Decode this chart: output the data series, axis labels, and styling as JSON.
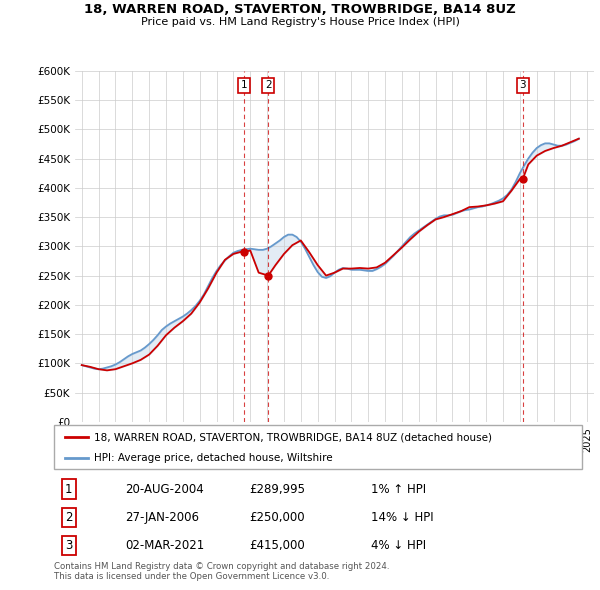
{
  "title": "18, WARREN ROAD, STAVERTON, TROWBRIDGE, BA14 8UZ",
  "subtitle": "Price paid vs. HM Land Registry's House Price Index (HPI)",
  "ylim": [
    0,
    600000
  ],
  "yticks": [
    0,
    50000,
    100000,
    150000,
    200000,
    250000,
    300000,
    350000,
    400000,
    450000,
    500000,
    550000,
    600000
  ],
  "ytick_labels": [
    "£0",
    "£50K",
    "£100K",
    "£150K",
    "£200K",
    "£250K",
    "£300K",
    "£350K",
    "£400K",
    "£450K",
    "£500K",
    "£550K",
    "£600K"
  ],
  "transactions": [
    {
      "label": "1",
      "date": "20-AUG-2004",
      "price": 289995,
      "x": 2004.63,
      "hpi_pct": "1%",
      "hpi_dir": "↑"
    },
    {
      "label": "2",
      "date": "27-JAN-2006",
      "price": 250000,
      "x": 2006.07,
      "hpi_pct": "14%",
      "hpi_dir": "↓"
    },
    {
      "label": "3",
      "date": "02-MAR-2021",
      "price": 415000,
      "x": 2021.17,
      "hpi_pct": "4%",
      "hpi_dir": "↓"
    }
  ],
  "legend_line1": "18, WARREN ROAD, STAVERTON, TROWBRIDGE, BA14 8UZ (detached house)",
  "legend_line2": "HPI: Average price, detached house, Wiltshire",
  "footer1": "Contains HM Land Registry data © Crown copyright and database right 2024.",
  "footer2": "This data is licensed under the Open Government Licence v3.0.",
  "line_color_red": "#cc0000",
  "line_color_blue": "#6699cc",
  "background_color": "#ffffff",
  "plot_bg_color": "#ffffff",
  "hpi_x": [
    1995.0,
    1995.25,
    1995.5,
    1995.75,
    1996.0,
    1996.25,
    1996.5,
    1996.75,
    1997.0,
    1997.25,
    1997.5,
    1997.75,
    1998.0,
    1998.25,
    1998.5,
    1998.75,
    1999.0,
    1999.25,
    1999.5,
    1999.75,
    2000.0,
    2000.25,
    2000.5,
    2000.75,
    2001.0,
    2001.25,
    2001.5,
    2001.75,
    2002.0,
    2002.25,
    2002.5,
    2002.75,
    2003.0,
    2003.25,
    2003.5,
    2003.75,
    2004.0,
    2004.25,
    2004.5,
    2004.75,
    2005.0,
    2005.25,
    2005.5,
    2005.75,
    2006.0,
    2006.25,
    2006.5,
    2006.75,
    2007.0,
    2007.25,
    2007.5,
    2007.75,
    2008.0,
    2008.25,
    2008.5,
    2008.75,
    2009.0,
    2009.25,
    2009.5,
    2009.75,
    2010.0,
    2010.25,
    2010.5,
    2010.75,
    2011.0,
    2011.25,
    2011.5,
    2011.75,
    2012.0,
    2012.25,
    2012.5,
    2012.75,
    2013.0,
    2013.25,
    2013.5,
    2013.75,
    2014.0,
    2014.25,
    2014.5,
    2014.75,
    2015.0,
    2015.25,
    2015.5,
    2015.75,
    2016.0,
    2016.25,
    2016.5,
    2016.75,
    2017.0,
    2017.25,
    2017.5,
    2017.75,
    2018.0,
    2018.25,
    2018.5,
    2018.75,
    2019.0,
    2019.25,
    2019.5,
    2019.75,
    2020.0,
    2020.25,
    2020.5,
    2020.75,
    2021.0,
    2021.25,
    2021.5,
    2021.75,
    2022.0,
    2022.25,
    2022.5,
    2022.75,
    2023.0,
    2023.25,
    2023.5,
    2023.75,
    2024.0,
    2024.25,
    2024.5
  ],
  "hpi_y": [
    97000,
    95000,
    93000,
    91000,
    90000,
    91000,
    93000,
    95000,
    98000,
    102000,
    107000,
    112000,
    116000,
    119000,
    122000,
    127000,
    133000,
    140000,
    148000,
    157000,
    163000,
    168000,
    172000,
    176000,
    180000,
    185000,
    191000,
    198000,
    207000,
    218000,
    232000,
    246000,
    258000,
    268000,
    276000,
    283000,
    289000,
    292000,
    294000,
    295000,
    296000,
    295000,
    294000,
    294000,
    296000,
    300000,
    305000,
    310000,
    316000,
    320000,
    320000,
    316000,
    308000,
    296000,
    282000,
    268000,
    256000,
    248000,
    246000,
    249000,
    255000,
    260000,
    263000,
    262000,
    260000,
    260000,
    260000,
    259000,
    258000,
    258000,
    261000,
    265000,
    270000,
    277000,
    284000,
    292000,
    300000,
    308000,
    316000,
    322000,
    327000,
    332000,
    337000,
    342000,
    347000,
    351000,
    353000,
    353000,
    354000,
    357000,
    360000,
    362000,
    363000,
    365000,
    367000,
    368000,
    370000,
    372000,
    375000,
    378000,
    382000,
    388000,
    397000,
    410000,
    425000,
    438000,
    450000,
    460000,
    468000,
    473000,
    476000,
    476000,
    474000,
    472000,
    472000,
    474000,
    477000,
    480000,
    484000
  ],
  "price_x": [
    1995.0,
    1995.5,
    1996.0,
    1996.5,
    1997.0,
    1997.5,
    1998.0,
    1998.5,
    1999.0,
    1999.5,
    2000.0,
    2000.5,
    2001.0,
    2001.5,
    2002.0,
    2002.5,
    2003.0,
    2003.5,
    2004.0,
    2004.5,
    2004.63,
    2004.75,
    2005.0,
    2005.5,
    2006.07,
    2006.5,
    2007.0,
    2007.5,
    2008.0,
    2008.5,
    2009.0,
    2009.5,
    2010.0,
    2010.5,
    2011.0,
    2011.5,
    2012.0,
    2012.5,
    2013.0,
    2013.5,
    2014.0,
    2014.5,
    2015.0,
    2015.5,
    2016.0,
    2016.5,
    2017.0,
    2017.5,
    2018.0,
    2018.5,
    2019.0,
    2019.5,
    2020.0,
    2020.5,
    2021.0,
    2021.17,
    2021.5,
    2022.0,
    2022.5,
    2023.0,
    2023.5,
    2024.0,
    2024.5
  ],
  "price_y": [
    97000,
    94000,
    90000,
    88000,
    90000,
    95000,
    100000,
    106000,
    115000,
    130000,
    148000,
    161000,
    172000,
    185000,
    204000,
    228000,
    255000,
    277000,
    287000,
    291000,
    289995,
    291000,
    293000,
    255000,
    250000,
    268000,
    287000,
    302000,
    310000,
    290000,
    268000,
    250000,
    255000,
    262000,
    262000,
    263000,
    262000,
    264000,
    272000,
    285000,
    298000,
    312000,
    325000,
    336000,
    346000,
    350000,
    355000,
    360000,
    367000,
    368000,
    370000,
    373000,
    377000,
    395000,
    415000,
    415000,
    440000,
    455000,
    463000,
    468000,
    472000,
    478000,
    484000
  ],
  "table_rows": [
    [
      "1",
      "20-AUG-2004",
      "£289,995",
      "1% ↑ HPI"
    ],
    [
      "2",
      "27-JAN-2006",
      "£250,000",
      "14% ↓ HPI"
    ],
    [
      "3",
      "02-MAR-2021",
      "£415,000",
      "4% ↓ HPI"
    ]
  ]
}
